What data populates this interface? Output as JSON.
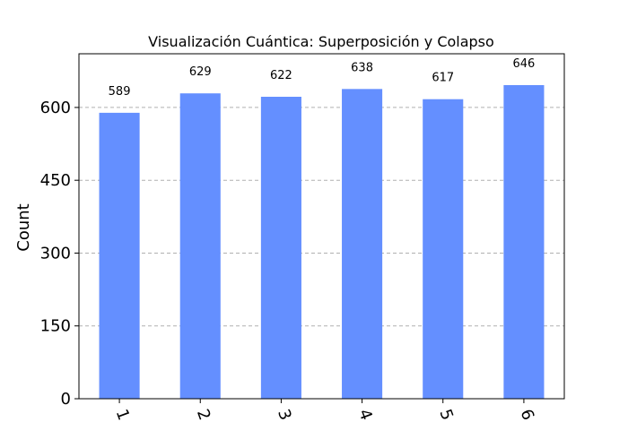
{
  "chart_data": {
    "type": "bar",
    "title": "Visualización Cuántica: Superposición y Colapso",
    "xlabel": "",
    "ylabel": "Count",
    "categories": [
      "1",
      "2",
      "3",
      "4",
      "5",
      "6"
    ],
    "values": [
      589,
      629,
      622,
      638,
      617,
      646
    ],
    "data_labels": [
      "589",
      "629",
      "622",
      "638",
      "617",
      "646"
    ],
    "yticks": [
      0,
      150,
      300,
      450,
      600
    ],
    "ytick_labels": [
      "0",
      "150",
      "300",
      "450",
      "600"
    ],
    "ylim": [
      0,
      710.6
    ],
    "grid": "y-dashed",
    "bar_color": "#648fff",
    "xtick_rotation": 70
  }
}
